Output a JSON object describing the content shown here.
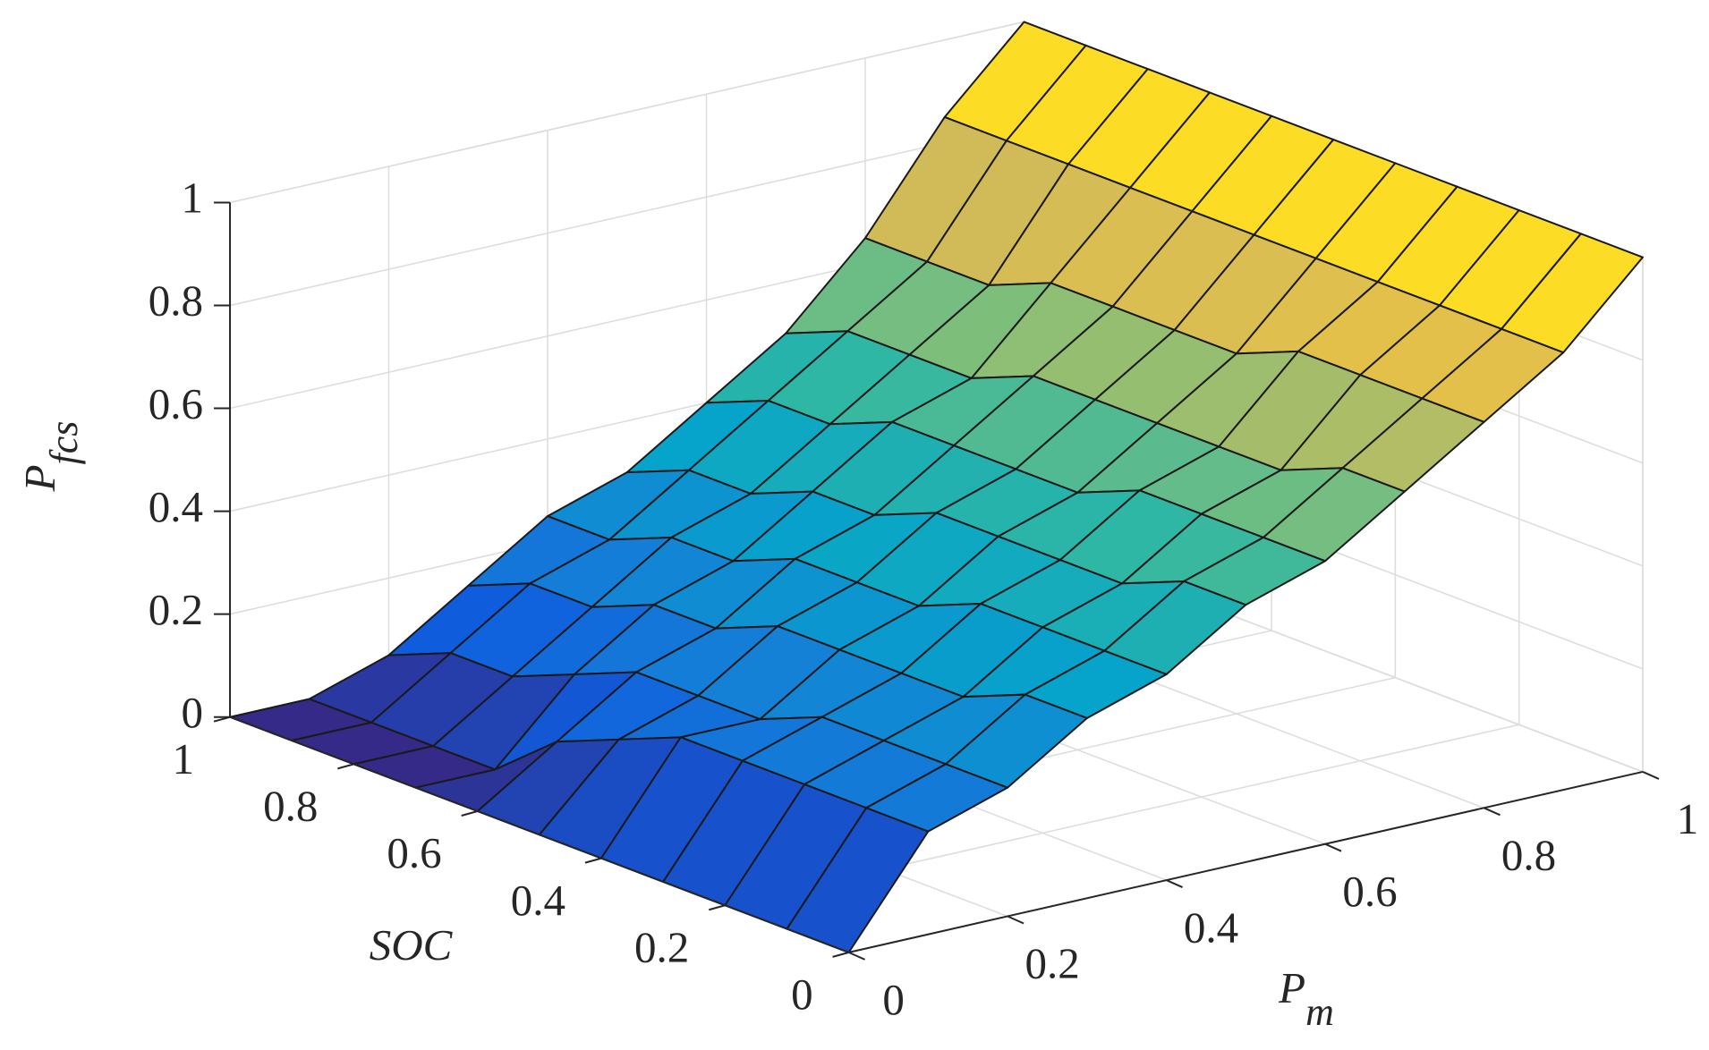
{
  "chart_data": {
    "type": "surface",
    "xlabel": "P",
    "xlabel_sub": "m",
    "ylabel": "SOC",
    "zlabel": "P",
    "zlabel_sub": "fcs",
    "x": [
      0,
      0.1,
      0.2,
      0.3,
      0.4,
      0.5,
      0.6,
      0.7,
      0.8,
      0.9,
      1
    ],
    "y": [
      0,
      0.1,
      0.2,
      0.3,
      0.4,
      0.5,
      0.6,
      0.7,
      0.8,
      0.9,
      1
    ],
    "z": [
      [
        0,
        0.2,
        0.25,
        0.35,
        0.4,
        0.5,
        0.55,
        0.65,
        0.75,
        0.85,
        1
      ],
      [
        0,
        0.2,
        0.25,
        0.35,
        0.4,
        0.5,
        0.55,
        0.65,
        0.75,
        0.85,
        1
      ],
      [
        0,
        0.2,
        0.25,
        0.3,
        0.4,
        0.45,
        0.55,
        0.6,
        0.75,
        0.85,
        1
      ],
      [
        0,
        0.2,
        0.25,
        0.3,
        0.4,
        0.45,
        0.55,
        0.6,
        0.75,
        0.85,
        1
      ],
      [
        0,
        0.2,
        0.2,
        0.3,
        0.35,
        0.45,
        0.5,
        0.6,
        0.7,
        0.85,
        1
      ],
      [
        0,
        0.15,
        0.2,
        0.3,
        0.35,
        0.45,
        0.5,
        0.6,
        0.7,
        0.85,
        1
      ],
      [
        0,
        0.1,
        0.2,
        0.25,
        0.35,
        0.4,
        0.5,
        0.6,
        0.7,
        0.85,
        1
      ],
      [
        0,
        0,
        0.15,
        0.25,
        0.3,
        0.4,
        0.5,
        0.55,
        0.7,
        0.85,
        1
      ],
      [
        0,
        0,
        0.1,
        0.2,
        0.3,
        0.35,
        0.45,
        0.55,
        0.65,
        0.85,
        1
      ],
      [
        0,
        0,
        0.1,
        0.2,
        0.25,
        0.35,
        0.45,
        0.55,
        0.65,
        0.85,
        1
      ],
      [
        0,
        0,
        0.05,
        0.15,
        0.25,
        0.3,
        0.4,
        0.5,
        0.65,
        0.85,
        1
      ]
    ],
    "xlim": [
      0,
      1
    ],
    "ylim": [
      0,
      1
    ],
    "zlim": [
      0,
      1
    ],
    "xticks": [
      0,
      0.2,
      0.4,
      0.6,
      0.8,
      1
    ],
    "yticks": [
      0,
      0.2,
      0.4,
      0.6,
      0.8,
      1
    ],
    "zticks": [
      0,
      0.2,
      0.4,
      0.6,
      0.8,
      1
    ],
    "grid": true,
    "clim": [
      0,
      1
    ],
    "colormap": [
      "#352a87",
      "#0f5cdd",
      "#1481d6",
      "#06a4ca",
      "#2eb7a4",
      "#87bf77",
      "#d1bb59",
      "#fec832",
      "#f9fb0e"
    ]
  }
}
